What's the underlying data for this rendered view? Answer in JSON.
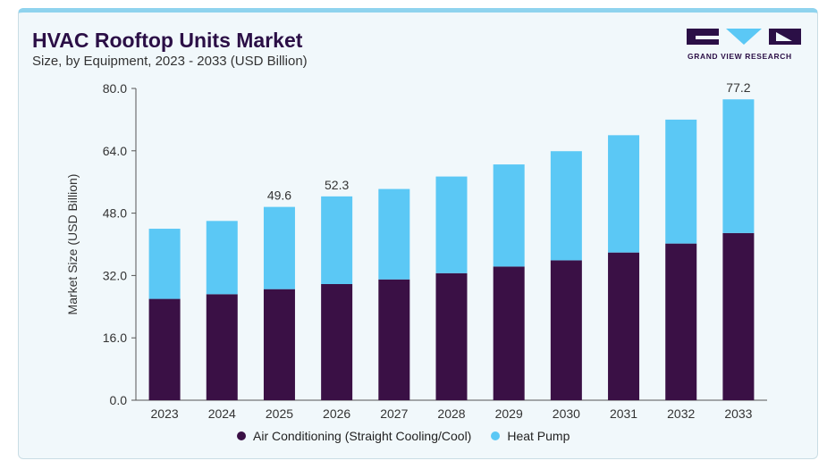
{
  "header": {
    "title": "HVAC Rooftop Units Market",
    "subtitle": "Size, by Equipment, 2023 - 2033 (USD Billion)"
  },
  "logo": {
    "text": "GRAND VIEW RESEARCH"
  },
  "colors": {
    "air_conditioning": "#3a1045",
    "heat_pump": "#5bc8f5"
  },
  "chart_data": {
    "type": "bar",
    "stacked": true,
    "categories": [
      "2023",
      "2024",
      "2025",
      "2026",
      "2027",
      "2028",
      "2029",
      "2030",
      "2031",
      "2032",
      "2033"
    ],
    "series": [
      {
        "name": "Air Conditioning (Straight Cooling/Cool)",
        "values": [
          26.0,
          27.2,
          28.5,
          29.8,
          31.0,
          32.6,
          34.3,
          35.9,
          37.9,
          40.2,
          42.9
        ]
      },
      {
        "name": "Heat Pump",
        "values": [
          18.0,
          18.8,
          21.1,
          22.5,
          23.2,
          24.8,
          26.2,
          28.0,
          30.1,
          31.8,
          34.3
        ]
      }
    ],
    "data_labels": [
      {
        "category": "2025",
        "label": "49.6"
      },
      {
        "category": "2026",
        "label": "52.3"
      },
      {
        "category": "2033",
        "label": "77.2"
      }
    ],
    "ylabel": "Market Size (USD Billion)",
    "xlabel": "",
    "ylim": [
      0,
      80
    ],
    "yticks": [
      "0.0",
      "16.0",
      "32.0",
      "48.0",
      "64.0",
      "80.0"
    ],
    "legend": "bottom",
    "grid": false
  }
}
